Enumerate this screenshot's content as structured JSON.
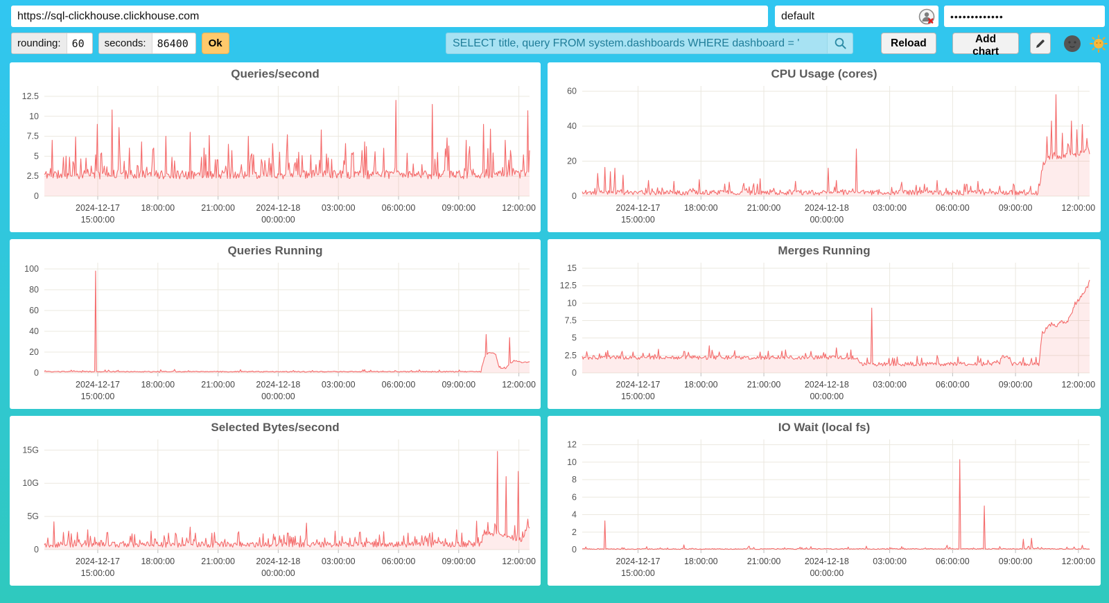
{
  "toolbar": {
    "url": "https://sql-clickhouse.clickhouse.com",
    "user": "default",
    "password_masked": "•••••••••••••",
    "rounding_label": "rounding:",
    "rounding_value": "60",
    "seconds_label": "seconds:",
    "seconds_value": "86400",
    "ok_label": "Ok",
    "query_value": "SELECT title, query FROM system.dashboards WHERE dashboard = '",
    "reload_label": "Reload",
    "add_chart_label": "Add chart",
    "icons": {
      "search": "magnifier",
      "edit": "pencil",
      "theme_dark": "dark-moon-face",
      "theme_light": "sun-face",
      "username_badge": "password-manager-with-red-x"
    }
  },
  "colors": {
    "background_top": "#31C6F1",
    "background_bottom": "#2FC9BE",
    "line": "#f46a6a",
    "fill": "rgba(245,106,106,0.13)",
    "grid": "#ebe8df",
    "title": "#5b5b5b",
    "ok_button": "#FFC96B",
    "query_input_bg": "#a7e2f3",
    "query_input_text": "#1f7d99"
  },
  "x_axis": {
    "ticks": [
      {
        "t": 0.11,
        "lines": [
          "2024-12-17",
          "15:00:00"
        ]
      },
      {
        "t": 0.234,
        "lines": [
          "18:00:00"
        ]
      },
      {
        "t": 0.358,
        "lines": [
          "21:00:00"
        ]
      },
      {
        "t": 0.482,
        "lines": [
          "2024-12-18",
          "00:00:00"
        ]
      },
      {
        "t": 0.606,
        "lines": [
          "03:00:00"
        ]
      },
      {
        "t": 0.73,
        "lines": [
          "06:00:00"
        ]
      },
      {
        "t": 0.854,
        "lines": [
          "09:00:00"
        ]
      },
      {
        "t": 0.978,
        "lines": [
          "12:00:00"
        ]
      }
    ]
  },
  "chart_data": [
    {
      "type": "line",
      "title": "Queries/second",
      "ylim": [
        0,
        13.8
      ],
      "y_ticks": [
        [
          0,
          "0"
        ],
        [
          2.5,
          "2.5"
        ],
        [
          5,
          "5"
        ],
        [
          7.5,
          "7.5"
        ],
        [
          10,
          "10"
        ],
        [
          12.5,
          "12.5"
        ]
      ],
      "baseline": [
        [
          0,
          2.7
        ],
        [
          1,
          2.7
        ]
      ],
      "spikes": [
        [
          0.016,
          7.0
        ],
        [
          0.065,
          7.4
        ],
        [
          0.11,
          9.0
        ],
        [
          0.14,
          10.8
        ],
        [
          0.153,
          8.6
        ],
        [
          0.2,
          6.8
        ],
        [
          0.25,
          7.5
        ],
        [
          0.3,
          8.0
        ],
        [
          0.34,
          7.6
        ],
        [
          0.38,
          6.5
        ],
        [
          0.42,
          7.5
        ],
        [
          0.47,
          6.6
        ],
        [
          0.5,
          7.7
        ],
        [
          0.57,
          8.3
        ],
        [
          0.62,
          6.6
        ],
        [
          0.66,
          6.8
        ],
        [
          0.724,
          12.0
        ],
        [
          0.8,
          11.5
        ],
        [
          0.83,
          7.3
        ],
        [
          0.87,
          7.0
        ],
        [
          0.905,
          9.0
        ],
        [
          0.92,
          8.4
        ],
        [
          0.95,
          7.0
        ],
        [
          0.997,
          10.7
        ]
      ],
      "noise": 0.55,
      "spike_prob": 0.22,
      "spike_amp": 3.2,
      "min": 1.8,
      "seed": 11
    },
    {
      "type": "line",
      "title": "CPU Usage (cores)",
      "ylim": [
        0,
        63
      ],
      "y_ticks": [
        [
          0,
          "0"
        ],
        [
          20,
          "20"
        ],
        [
          40,
          "40"
        ],
        [
          60,
          "60"
        ]
      ],
      "baseline": [
        [
          0,
          2.2
        ],
        [
          0.9,
          2.0
        ],
        [
          0.907,
          16
        ],
        [
          0.915,
          21
        ],
        [
          0.93,
          23
        ],
        [
          0.945,
          22
        ],
        [
          0.96,
          25
        ],
        [
          0.975,
          23
        ],
        [
          0.99,
          26
        ],
        [
          1,
          25
        ]
      ],
      "spikes": [
        [
          0.03,
          13
        ],
        [
          0.045,
          16.5
        ],
        [
          0.055,
          14
        ],
        [
          0.065,
          16
        ],
        [
          0.08,
          12
        ],
        [
          0.13,
          9
        ],
        [
          0.18,
          8.5
        ],
        [
          0.23,
          9.5
        ],
        [
          0.29,
          8
        ],
        [
          0.35,
          10
        ],
        [
          0.42,
          8.5
        ],
        [
          0.5,
          9
        ],
        [
          0.485,
          16
        ],
        [
          0.54,
          27
        ],
        [
          0.63,
          8
        ],
        [
          0.7,
          9
        ],
        [
          0.78,
          8.5
        ],
        [
          0.85,
          7
        ],
        [
          0.916,
          34
        ],
        [
          0.925,
          43
        ],
        [
          0.934,
          58
        ],
        [
          0.947,
          36
        ],
        [
          0.957,
          30
        ],
        [
          0.965,
          43
        ],
        [
          0.975,
          38
        ],
        [
          0.985,
          41
        ],
        [
          0.995,
          33
        ]
      ],
      "noise": 1.5,
      "spike_prob": 0.15,
      "spike_amp": 4.5,
      "min": 0.5,
      "seed": 22
    },
    {
      "type": "line",
      "title": "Queries Running",
      "ylim": [
        0,
        106
      ],
      "y_ticks": [
        [
          0,
          "0"
        ],
        [
          20,
          "20"
        ],
        [
          40,
          "40"
        ],
        [
          60,
          "60"
        ],
        [
          80,
          "80"
        ],
        [
          100,
          "100"
        ]
      ],
      "baseline": [
        [
          0,
          1.2
        ],
        [
          0.9,
          1.2
        ],
        [
          0.907,
          15
        ],
        [
          0.917,
          20
        ],
        [
          0.93,
          18
        ],
        [
          0.937,
          5
        ],
        [
          0.95,
          4
        ],
        [
          0.958,
          8
        ],
        [
          0.968,
          12
        ],
        [
          0.985,
          10
        ],
        [
          1,
          10.5
        ]
      ],
      "spikes": [
        [
          0.105,
          98
        ],
        [
          0.91,
          37
        ],
        [
          0.958,
          34
        ]
      ],
      "noise": 0.45,
      "spike_prob": 0.06,
      "spike_amp": 1.8,
      "min": 0.3,
      "seed": 33
    },
    {
      "type": "line",
      "title": "Merges Running",
      "ylim": [
        0,
        15.8
      ],
      "y_ticks": [
        [
          0,
          "0"
        ],
        [
          2.5,
          "2.5"
        ],
        [
          5,
          "5"
        ],
        [
          7.5,
          "7.5"
        ],
        [
          10,
          "10"
        ],
        [
          12.5,
          "12.5"
        ],
        [
          15,
          "15"
        ]
      ],
      "baseline": [
        [
          0,
          2.2
        ],
        [
          0.54,
          2.2
        ],
        [
          0.548,
          1.25
        ],
        [
          0.822,
          1.3
        ],
        [
          0.826,
          2.3
        ],
        [
          0.842,
          2.3
        ],
        [
          0.846,
          1.3
        ],
        [
          0.9,
          1.3
        ],
        [
          0.906,
          5.6
        ],
        [
          0.915,
          6.3
        ],
        [
          0.925,
          7.0
        ],
        [
          0.935,
          6.6
        ],
        [
          0.945,
          7.4
        ],
        [
          0.955,
          7.2
        ],
        [
          0.962,
          8.2
        ],
        [
          0.97,
          9.6
        ],
        [
          0.98,
          10.6
        ],
        [
          0.99,
          11.6
        ],
        [
          1,
          12.9
        ]
      ],
      "spikes": [
        [
          0.05,
          3.2
        ],
        [
          0.1,
          3.0
        ],
        [
          0.15,
          3.4
        ],
        [
          0.2,
          3.1
        ],
        [
          0.25,
          3.9
        ],
        [
          0.3,
          3.2
        ],
        [
          0.35,
          3.0
        ],
        [
          0.4,
          3.3
        ],
        [
          0.45,
          3.1
        ],
        [
          0.5,
          3.6
        ],
        [
          0.53,
          3.3
        ],
        [
          0.57,
          9.3
        ],
        [
          0.62,
          2.3
        ],
        [
          0.66,
          2.4
        ],
        [
          0.7,
          2.5
        ],
        [
          0.74,
          2.3
        ],
        [
          0.78,
          2.4
        ],
        [
          0.87,
          2.2
        ],
        [
          0.885,
          2.1
        ]
      ],
      "noise": 0.28,
      "spike_prob": 0.1,
      "spike_amp": 1.0,
      "min": 0.95,
      "seed": 44
    },
    {
      "type": "line",
      "title": "Selected Bytes/second",
      "unit": "G",
      "ylim": [
        0,
        16.6
      ],
      "y_ticks": [
        [
          0,
          "0"
        ],
        [
          5,
          "5G"
        ],
        [
          10,
          "10G"
        ],
        [
          15,
          "15G"
        ]
      ],
      "baseline": [
        [
          0,
          0.75
        ],
        [
          0.9,
          0.8
        ],
        [
          0.906,
          2.6
        ],
        [
          0.92,
          2.4
        ],
        [
          0.935,
          2.2
        ],
        [
          0.95,
          1.9
        ],
        [
          0.965,
          1.8
        ],
        [
          0.98,
          1.6
        ],
        [
          0.99,
          1.7
        ],
        [
          0.994,
          3.9
        ],
        [
          1,
          2.9
        ]
      ],
      "spikes": [
        [
          0.02,
          4.2
        ],
        [
          0.05,
          2.8
        ],
        [
          0.09,
          3.0
        ],
        [
          0.13,
          2.6
        ],
        [
          0.18,
          2.4
        ],
        [
          0.22,
          2.8
        ],
        [
          0.27,
          2.5
        ],
        [
          0.3,
          3.4
        ],
        [
          0.35,
          2.6
        ],
        [
          0.4,
          2.7
        ],
        [
          0.45,
          2.4
        ],
        [
          0.5,
          2.5
        ],
        [
          0.54,
          4.0
        ],
        [
          0.6,
          2.8
        ],
        [
          0.65,
          2.6
        ],
        [
          0.7,
          2.7
        ],
        [
          0.75,
          2.5
        ],
        [
          0.8,
          2.6
        ],
        [
          0.85,
          3.0
        ],
        [
          0.89,
          4.3
        ],
        [
          0.934,
          14.8
        ],
        [
          0.951,
          11.0
        ],
        [
          0.976,
          11.8
        ],
        [
          0.997,
          4.6
        ]
      ],
      "noise": 0.42,
      "spike_prob": 0.2,
      "spike_amp": 1.7,
      "min": 0.12,
      "seed": 55
    },
    {
      "type": "line",
      "title": "IO Wait (local fs)",
      "ylim": [
        0,
        12.6
      ],
      "y_ticks": [
        [
          0,
          "0"
        ],
        [
          2,
          "2"
        ],
        [
          4,
          "4"
        ],
        [
          6,
          "6"
        ],
        [
          8,
          "8"
        ],
        [
          10,
          "10"
        ],
        [
          12,
          "12"
        ]
      ],
      "baseline": [
        [
          0,
          0.07
        ],
        [
          1,
          0.09
        ]
      ],
      "spikes": [
        [
          0.045,
          3.3
        ],
        [
          0.2,
          0.55
        ],
        [
          0.33,
          0.4
        ],
        [
          0.45,
          0.35
        ],
        [
          0.56,
          0.4
        ],
        [
          0.63,
          0.35
        ],
        [
          0.72,
          0.5
        ],
        [
          0.745,
          10.3
        ],
        [
          0.792,
          5.0
        ],
        [
          0.87,
          1.2
        ],
        [
          0.885,
          1.3
        ],
        [
          0.985,
          0.5
        ]
      ],
      "noise": 0.05,
      "spike_prob": 0.05,
      "spike_amp": 0.3,
      "min": 0.005,
      "seed": 66
    }
  ]
}
